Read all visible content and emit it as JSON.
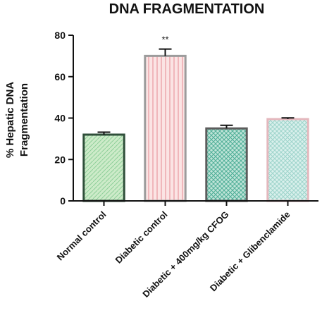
{
  "chart_data": {
    "type": "bar",
    "title": "DNA FRAGMENTATION",
    "ylabel_lines": [
      "% Hepatic DNA",
      "Fragmentation"
    ],
    "xlabel": "",
    "ylim": [
      0,
      80
    ],
    "yticks": [
      0,
      20,
      40,
      60,
      80
    ],
    "grid": false,
    "categories": [
      "Normal control",
      "Diabetic control",
      "Diabetic + 400mg/kg CFOG",
      "Diabetic + Glibenclamide"
    ],
    "values": [
      32,
      70,
      35,
      39.5
    ],
    "errors": [
      1.2,
      3.3,
      1.5,
      0.6
    ],
    "annotations": [
      "",
      "**",
      "",
      ""
    ],
    "colors": [
      {
        "fill": "#cdebc9",
        "edge": "#2f4f3a"
      },
      {
        "fill": "#f7d3d3",
        "edge": "#9c9c9c"
      },
      {
        "fill": "#a7d6c8",
        "edge": "#5c5c5c"
      },
      {
        "fill": "#cfeae6",
        "edge": "#e4b7bd"
      }
    ]
  }
}
